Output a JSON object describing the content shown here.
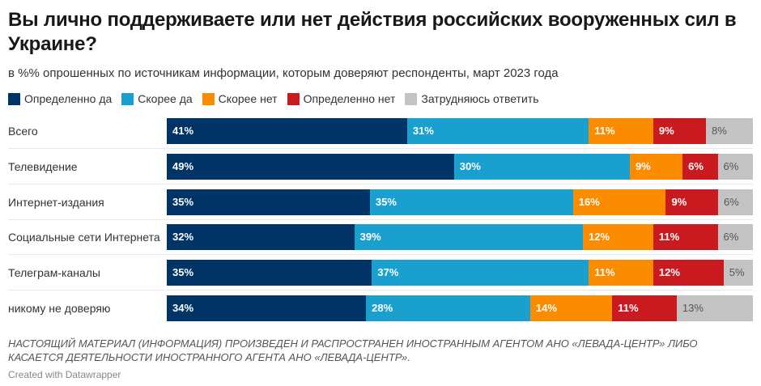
{
  "chart_data": {
    "type": "bar",
    "orientation": "horizontal",
    "stacked": true,
    "title": "Вы лично поддерживаете или нет действия российских вооруженных сил в Украине?",
    "subtitle": "в %% опрошенных по источникам информации, которым доверяют респонденты, март 2023 года",
    "categories": [
      "Всего",
      "Телевидение",
      "Интернет-издания",
      "Социальные сети Интернета",
      "Телеграм-каналы",
      "никому не доверяю"
    ],
    "series": [
      {
        "name": "Определенно да",
        "color": "#003366",
        "values": [
          41,
          49,
          35,
          32,
          35,
          34
        ]
      },
      {
        "name": "Скорее да",
        "color": "#1aa0cf",
        "values": [
          31,
          30,
          35,
          39,
          37,
          28
        ]
      },
      {
        "name": "Скорее нет",
        "color": "#fb8c00",
        "values": [
          11,
          9,
          16,
          12,
          11,
          14
        ]
      },
      {
        "name": "Определенно нет",
        "color": "#c91b1f",
        "values": [
          9,
          6,
          9,
          11,
          12,
          11
        ]
      },
      {
        "name": "Затрудняюсь ответить",
        "color": "#c3c3c3",
        "values": [
          8,
          6,
          6,
          6,
          5,
          13
        ]
      }
    ],
    "value_suffix": "%",
    "xlim": [
      0,
      100
    ],
    "legend_position": "top-left",
    "grid": false
  },
  "footnote": "НАСТОЯЩИЙ МАТЕРИАЛ (ИНФОРМАЦИЯ) ПРОИЗВЕДЕН И РАСПРОСТРАНЕН ИНОСТРАННЫМ АГЕНТОМ АНО «ЛЕВАДА-ЦЕНТР» ЛИБО КАСАЕТСЯ ДЕЯТЕЛЬНОСТИ ИНОСТРАННОГО АГЕНТА АНО «ЛЕВАДА-ЦЕНТР».",
  "credit": "Created with Datawrapper"
}
